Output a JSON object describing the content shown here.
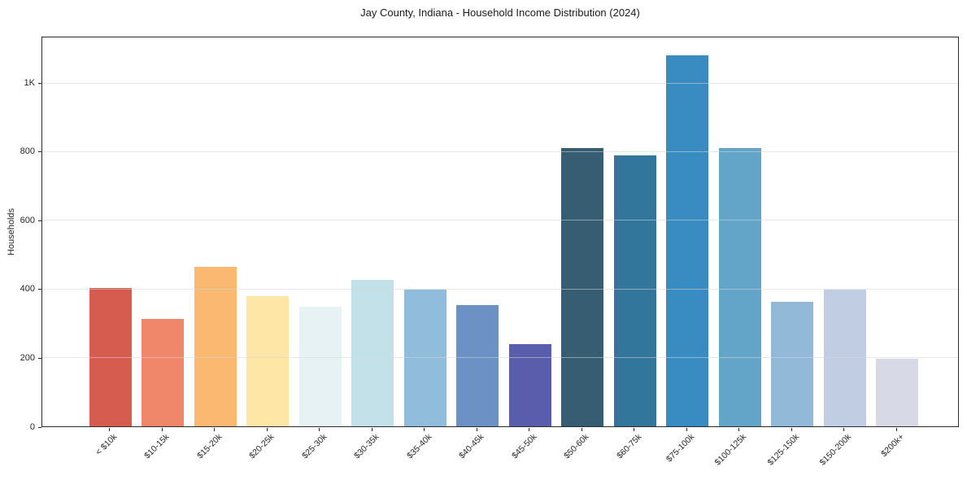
{
  "chart_data": {
    "type": "bar",
    "title": "Jay County, Indiana - Household Income Distribution (2024)",
    "xlabel": "",
    "ylabel": "Households",
    "categories": [
      "< $10k",
      "$10-15k",
      "$15-20k",
      "$20-25k",
      "$25-30k",
      "$30-35k",
      "$35-40k",
      "$40-45k",
      "$45-50k",
      "$50-60k",
      "$60-75k",
      "$75-100k",
      "$100-125k",
      "$125-150k",
      "$150-200k",
      "$200k+"
    ],
    "values": [
      403,
      313,
      466,
      379,
      348,
      427,
      400,
      353,
      240,
      813,
      790,
      1083,
      813,
      363,
      398,
      196
    ],
    "bar_colors": [
      "#d65c4f",
      "#f0876a",
      "#fbb871",
      "#fde6a6",
      "#e7f2f5",
      "#c3e1e9",
      "#91bddc",
      "#6c92c5",
      "#5a5dab",
      "#365d72",
      "#33769c",
      "#398cc2",
      "#63a5c9",
      "#93b9d9",
      "#c1cde3",
      "#d8d9e7"
    ],
    "y_ticks": [
      {
        "value": 0,
        "label": "0"
      },
      {
        "value": 200,
        "label": "200"
      },
      {
        "value": 400,
        "label": "400"
      },
      {
        "value": 600,
        "label": "600"
      },
      {
        "value": 800,
        "label": "800"
      },
      {
        "value": 1000,
        "label": "1K"
      }
    ],
    "ylim": [
      0,
      1135
    ],
    "grid": "horizontal",
    "legend": "none",
    "style": {
      "background": "#ffffff",
      "spine_color": "#2b2b2b",
      "grid_color": "#e8e8e8",
      "text_color": "#262626"
    }
  }
}
